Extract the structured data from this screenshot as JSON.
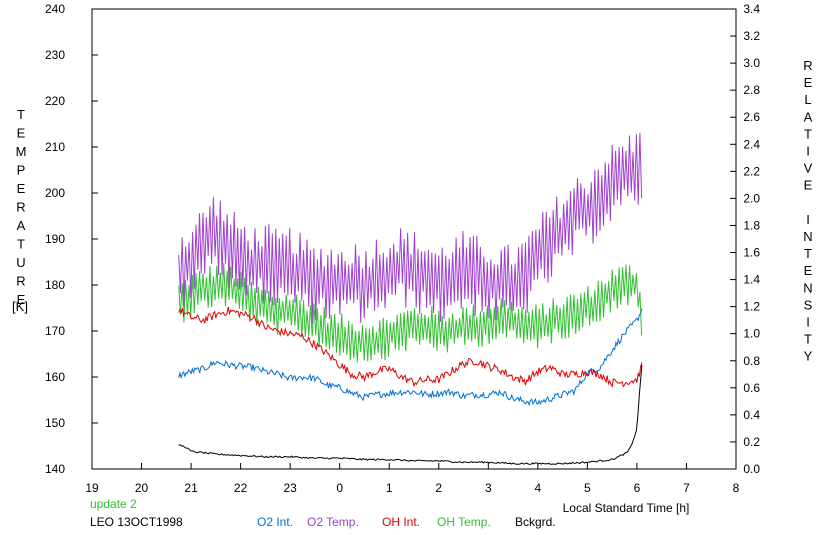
{
  "chart_data": {
    "type": "line",
    "title": "",
    "ylabel_left": "TEMPERATURE",
    "ylabel_left_unit": "[K]",
    "ylabel_right": "RELATIVE INTENSITY",
    "xlabel": "Local Standard Time [h]",
    "xlim": [
      19,
      32
    ],
    "x_tick_labels": [
      "19",
      "20",
      "21",
      "22",
      "23",
      "0",
      "1",
      "2",
      "3",
      "4",
      "5",
      "6",
      "7",
      "8"
    ],
    "ylim_left": [
      140,
      240
    ],
    "y_left_ticks": [
      140,
      150,
      160,
      170,
      180,
      190,
      200,
      210,
      220,
      230,
      240
    ],
    "ylim_right": [
      0.0,
      3.4
    ],
    "y_right_ticks": [
      "0.0",
      "0.2",
      "0.4",
      "0.6",
      "0.8",
      "1.0",
      "1.2",
      "1.4",
      "1.6",
      "1.8",
      "2.0",
      "2.2",
      "2.4",
      "2.6",
      "2.8",
      "3.0",
      "3.2",
      "3.4"
    ],
    "grid": false,
    "legend_position": "bottom",
    "series": [
      {
        "name": "O2 Int.",
        "axis": "right",
        "color": "#0070d0",
        "x": [
          20.75,
          21.0,
          21.25,
          21.5,
          21.75,
          22.0,
          22.25,
          22.5,
          22.75,
          23.0,
          23.25,
          23.5,
          23.75,
          24.0,
          24.25,
          24.5,
          24.75,
          25.0,
          25.25,
          25.5,
          25.75,
          26.0,
          26.25,
          26.5,
          26.75,
          27.0,
          27.25,
          27.5,
          27.75,
          28.0,
          28.25,
          28.5,
          28.75,
          29.0,
          29.25,
          29.5,
          29.75,
          30.0,
          30.1
        ],
        "y": [
          0.69,
          0.72,
          0.74,
          0.79,
          0.77,
          0.76,
          0.75,
          0.72,
          0.7,
          0.67,
          0.68,
          0.67,
          0.62,
          0.6,
          0.56,
          0.53,
          0.55,
          0.56,
          0.57,
          0.57,
          0.55,
          0.56,
          0.57,
          0.54,
          0.55,
          0.55,
          0.57,
          0.52,
          0.5,
          0.49,
          0.52,
          0.55,
          0.58,
          0.71,
          0.75,
          0.88,
          1.0,
          1.1,
          1.18
        ]
      },
      {
        "name": "O2 Temp.",
        "axis": "left",
        "color": "#a040d0",
        "x": [
          20.75,
          21.0,
          21.25,
          21.5,
          21.75,
          22.0,
          22.25,
          22.5,
          22.75,
          23.0,
          23.25,
          23.5,
          23.75,
          24.0,
          24.25,
          24.5,
          24.75,
          25.0,
          25.25,
          25.5,
          25.75,
          26.0,
          26.25,
          26.5,
          26.75,
          27.0,
          27.25,
          27.5,
          27.75,
          28.0,
          28.25,
          28.5,
          28.75,
          29.0,
          29.25,
          29.5,
          29.75,
          30.0,
          30.1
        ],
        "y": [
          183,
          185,
          189,
          192,
          188,
          186,
          184,
          185,
          183,
          184,
          182,
          180,
          181,
          180,
          181,
          180,
          182,
          183,
          184,
          183,
          182,
          180,
          182,
          183,
          182,
          181,
          180,
          180,
          182,
          186,
          189,
          192,
          195,
          196,
          200,
          202,
          204,
          205,
          207
        ]
      },
      {
        "name": "OH Int.",
        "axis": "right",
        "color": "#e00000",
        "x": [
          20.75,
          21.0,
          21.25,
          21.5,
          21.75,
          22.0,
          22.25,
          22.5,
          22.75,
          23.0,
          23.25,
          23.5,
          23.75,
          24.0,
          24.25,
          24.5,
          24.75,
          25.0,
          25.25,
          25.5,
          25.75,
          26.0,
          26.25,
          26.5,
          26.75,
          27.0,
          27.25,
          27.5,
          27.75,
          28.0,
          28.25,
          28.5,
          28.75,
          29.0,
          29.25,
          29.5,
          29.75,
          30.0,
          30.1
        ],
        "y": [
          1.18,
          1.12,
          1.1,
          1.14,
          1.17,
          1.15,
          1.12,
          1.05,
          1.02,
          1.0,
          0.98,
          0.92,
          0.85,
          0.77,
          0.7,
          0.68,
          0.72,
          0.74,
          0.68,
          0.64,
          0.66,
          0.66,
          0.72,
          0.78,
          0.8,
          0.76,
          0.73,
          0.68,
          0.65,
          0.72,
          0.75,
          0.7,
          0.7,
          0.72,
          0.7,
          0.64,
          0.64,
          0.66,
          0.76
        ]
      },
      {
        "name": "OH Temp.",
        "axis": "left",
        "color": "#30c030",
        "x": [
          20.75,
          21.0,
          21.25,
          21.5,
          21.75,
          22.0,
          22.25,
          22.5,
          22.75,
          23.0,
          23.25,
          23.5,
          23.75,
          24.0,
          24.25,
          24.5,
          24.75,
          25.0,
          25.25,
          25.5,
          25.75,
          26.0,
          26.25,
          26.5,
          26.75,
          27.0,
          27.25,
          27.5,
          27.75,
          28.0,
          28.25,
          28.5,
          28.75,
          29.0,
          29.25,
          29.5,
          29.75,
          30.0,
          30.1
        ],
        "y": [
          176,
          178,
          179,
          180,
          180,
          178,
          176,
          175,
          174,
          174,
          173,
          172,
          170,
          169,
          168,
          168,
          168,
          169,
          170,
          171,
          171,
          170,
          170,
          171,
          171,
          172,
          173,
          172,
          171,
          171,
          172,
          173,
          174,
          175,
          177,
          179,
          180,
          180,
          172
        ]
      },
      {
        "name": "Bckgrd.",
        "axis": "right",
        "color": "#000000",
        "x": [
          20.75,
          20.9,
          21.0,
          21.25,
          21.5,
          22.0,
          22.5,
          23.0,
          23.5,
          24.0,
          24.5,
          25.0,
          25.5,
          26.0,
          26.5,
          27.0,
          27.5,
          28.0,
          28.5,
          29.0,
          29.5,
          29.8,
          29.9,
          30.0,
          30.05,
          30.1
        ],
        "y": [
          0.18,
          0.16,
          0.13,
          0.12,
          0.11,
          0.1,
          0.09,
          0.09,
          0.08,
          0.08,
          0.07,
          0.07,
          0.06,
          0.06,
          0.05,
          0.05,
          0.04,
          0.04,
          0.04,
          0.05,
          0.07,
          0.12,
          0.18,
          0.3,
          0.55,
          0.77
        ]
      }
    ]
  },
  "footer": {
    "update_text": "update 2",
    "site_date": "LEO 13OCT1998",
    "xlabel_text": "Local Standard Time [h]"
  }
}
